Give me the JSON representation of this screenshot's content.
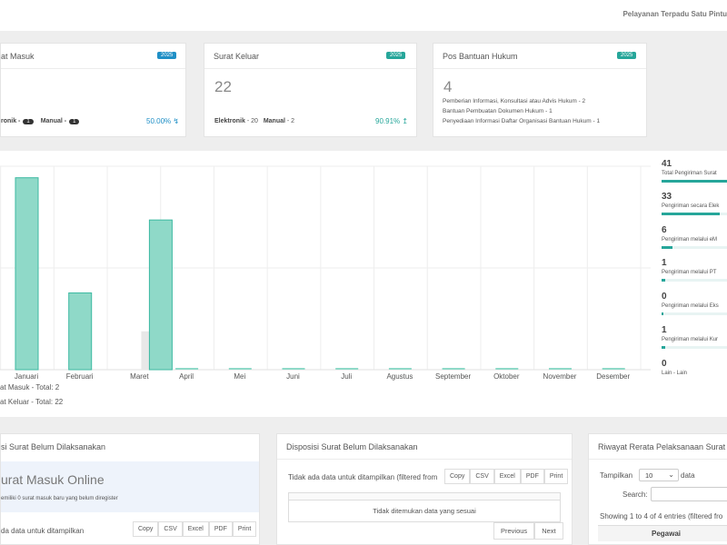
{
  "header": {
    "service_name": "Pelayanan Terpadu Satu Pintu"
  },
  "cards": {
    "surat_masuk": {
      "title": "at Masuk",
      "year": "2025",
      "elektronik_label": "ronik -",
      "elektronik_count": "1",
      "manual_label": "Manual -",
      "manual_count": "1",
      "percent": "50.00%"
    },
    "surat_keluar": {
      "title": "Surat Keluar",
      "year": "2025",
      "total": "22",
      "elektronik_label": "Elektronik",
      "elektronik_value": "- 20",
      "manual_label": "Manual",
      "manual_value": "- 2",
      "percent": "90.91%"
    },
    "pos_bantuan": {
      "title": "Pos Bantuan Hukum",
      "year": "2025",
      "total": "4",
      "items": [
        "Pemberian Informasi, Konsultasi atau Advis Hukum - 2",
        "Bantuan Pembuatan Dokumen Hukum - 1",
        "Penyediaan Informasi Daftar Organisasi Bantuan Hukum - 1"
      ]
    }
  },
  "chart_data": {
    "type": "bar",
    "categories": [
      "Januari",
      "Februari",
      "Maret",
      "April",
      "Mei",
      "Juni",
      "Juli",
      "Agustus",
      "September",
      "Oktober",
      "November",
      "Desember"
    ],
    "series": [
      {
        "name": "at Masuk - Total: 2",
        "values": [
          0,
          0,
          2,
          0,
          0,
          0,
          0,
          0,
          0,
          0,
          0,
          0
        ],
        "color": "#e8e8e8"
      },
      {
        "name": "at Keluar - Total: 22",
        "values": [
          10,
          4,
          7.8,
          0,
          0,
          0,
          0,
          0,
          0,
          0,
          0,
          0
        ],
        "color": "#8fd9c8"
      }
    ],
    "ylim": [
      0,
      10.6
    ],
    "grid": true
  },
  "legend": {
    "masuk": "at Masuk - Total: 2",
    "keluar": "at Keluar - Total: 22"
  },
  "stats": [
    {
      "value": "41",
      "label": "Total Pengiriman Surat",
      "fill": 1.0
    },
    {
      "value": "33",
      "label": "Pengiriman secara Elek",
      "fill": 0.805
    },
    {
      "value": "6",
      "label": "Pengiriman melalui eM",
      "fill": 0.146
    },
    {
      "value": "1",
      "label": "Pengiriman melalui PT",
      "fill": 0.024
    },
    {
      "value": "0",
      "label": "Pengiriman melalui Eks",
      "fill": 0.0
    },
    {
      "value": "1",
      "label": "Pengiriman melalui Kur",
      "fill": 0.024
    },
    {
      "value": "0",
      "label": "Lain - Lain",
      "fill": 0.0
    }
  ],
  "bottom": {
    "panel1": {
      "title": "si Surat Belum Dilaksanakan",
      "online_title": "urat Masuk Online",
      "online_sub": "emiliki 0 surat masuk baru yang belum diregister",
      "empty_text": "da data untuk ditampilkan",
      "buttons": [
        "Copy",
        "CSV",
        "Excel",
        "PDF",
        "Print"
      ]
    },
    "panel2": {
      "title": "Disposisi Surat Belum Dilaksanakan",
      "info_text": "Tidak ada data untuk ditampilkan (filtered from",
      "buttons": [
        "Copy",
        "CSV",
        "Excel",
        "PDF",
        "Print"
      ],
      "empty_row": "Tidak ditemukan data yang sesuai",
      "prev": "Previous",
      "next": "Next"
    },
    "panel3": {
      "title": "Riwayat Rerata Pelaksanaan Surat",
      "show_label": "Tampilkan",
      "show_value": "10",
      "show_suffix": "data",
      "search_label": "Search:",
      "entries_info": "Showing 1 to 4 of 4 entries (filtered fro",
      "col_pegawai": "Pegawai"
    }
  },
  "colors": {
    "masuk_badge": "#1f8fc6",
    "teal": "#26a69a",
    "bar": "#8fd9c8",
    "bar_gray": "#e8e8e8"
  }
}
